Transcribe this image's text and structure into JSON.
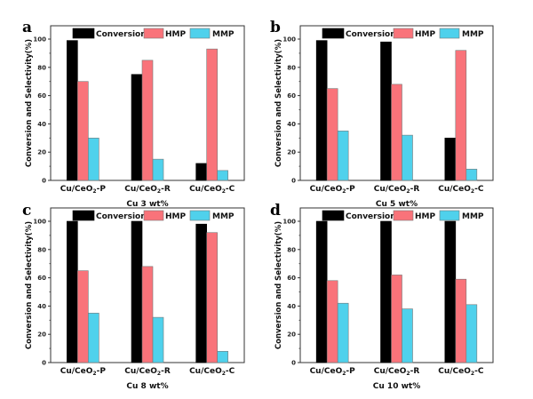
{
  "figure": {
    "legend": [
      "Conversion",
      "HMP",
      "MMP"
    ],
    "colors": {
      "Conversion": "#000000",
      "HMP": "#f9737a",
      "MMP": "#4fd1ec"
    },
    "ylabel": "Conversion and Selectivity(%)",
    "yticks": [
      "0",
      "20",
      "40",
      "60",
      "80",
      "100"
    ]
  },
  "chart_data": [
    {
      "panel": "a",
      "type": "bar",
      "title": "",
      "xlabel": "Cu 3 wt%",
      "ylabel": "Conversion and Selectivity(%)",
      "categories": [
        "Cu/CeO₂-P",
        "Cu/CeO₂-R",
        "Cu/CeO₂-C"
      ],
      "series": [
        {
          "name": "Conversion",
          "values": [
            99,
            75,
            12
          ]
        },
        {
          "name": "HMP",
          "values": [
            70,
            85,
            93
          ]
        },
        {
          "name": "MMP",
          "values": [
            30,
            15,
            7
          ]
        }
      ],
      "ylim": [
        0,
        110
      ],
      "yticks": [
        0,
        20,
        40,
        60,
        80,
        100
      ],
      "legend": "top"
    },
    {
      "panel": "b",
      "type": "bar",
      "title": "",
      "xlabel": "Cu 5 wt%",
      "ylabel": "Conversion and Selectivity(%)",
      "categories": [
        "Cu/CeO₂-P",
        "Cu/CeO₂-R",
        "Cu/CeO₂-C"
      ],
      "series": [
        {
          "name": "Conversion",
          "values": [
            99,
            98,
            30
          ]
        },
        {
          "name": "HMP",
          "values": [
            65,
            68,
            92
          ]
        },
        {
          "name": "MMP",
          "values": [
            35,
            32,
            8
          ]
        }
      ],
      "ylim": [
        0,
        110
      ],
      "yticks": [
        0,
        20,
        40,
        60,
        80,
        100
      ],
      "legend": "top"
    },
    {
      "panel": "c",
      "type": "bar",
      "title": "",
      "xlabel": "Cu 8 wt%",
      "ylabel": "Conversion and Selectivity(%)",
      "categories": [
        "Cu/CeO₂-P",
        "Cu/CeO₂-R",
        "Cu/CeO₂-C"
      ],
      "series": [
        {
          "name": "Conversion",
          "values": [
            100,
            100,
            98
          ]
        },
        {
          "name": "HMP",
          "values": [
            65,
            68,
            92
          ]
        },
        {
          "name": "MMP",
          "values": [
            35,
            32,
            8
          ]
        }
      ],
      "ylim": [
        0,
        110
      ],
      "yticks": [
        0,
        20,
        40,
        60,
        80,
        100
      ],
      "legend": "top"
    },
    {
      "panel": "d",
      "type": "bar",
      "title": "",
      "xlabel": "Cu 10 wt%",
      "ylabel": "Conversion and Selectivity(%)",
      "categories": [
        "Cu/CeO₂-P",
        "Cu/CeO₂-R",
        "Cu/CeO₂-C"
      ],
      "series": [
        {
          "name": "Conversion",
          "values": [
            100,
            100,
            100
          ]
        },
        {
          "name": "HMP",
          "values": [
            58,
            62,
            59
          ]
        },
        {
          "name": "MMP",
          "values": [
            42,
            38,
            41
          ]
        }
      ],
      "ylim": [
        0,
        110
      ],
      "yticks": [
        0,
        20,
        40,
        60,
        80,
        100
      ],
      "legend": "top"
    }
  ]
}
